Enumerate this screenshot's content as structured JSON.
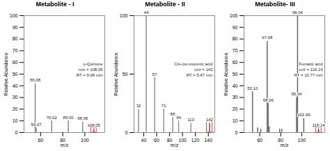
{
  "chart_data": [
    {
      "type": "bar",
      "title": "Metabolite - I",
      "xlabel": "m/z",
      "ylabel": "Relative Abundance",
      "x": [
        55.08,
        56.07,
        70.02,
        85.0,
        98.06,
        108.05
      ],
      "values": [
        42,
        4,
        10,
        10,
        9,
        3
      ],
      "peak_labels": [
        "55.08",
        "56.07",
        "70.02",
        "85.00",
        "98.06",
        "108.05"
      ],
      "color": "#888888",
      "colors": [
        "#888888",
        "#888888",
        "#888888",
        "#888888",
        "#888888",
        "#cc2222"
      ],
      "annotations": [
        "o-Quinone",
        "m/z = 108.05",
        "RT = 9.06 min"
      ],
      "xlim": [
        45,
        118
      ],
      "ylim": [
        0,
        100
      ],
      "xticks": [
        60,
        80,
        100
      ],
      "yticks": [
        0,
        10,
        20,
        30,
        40,
        50,
        60,
        70,
        80,
        90,
        100
      ]
    },
    {
      "type": "bar",
      "title": "Metabolite - II",
      "xlabel": "m/z",
      "ylabel": "Relative Abundance",
      "x": [
        32,
        44,
        57,
        71,
        85,
        94,
        113,
        142
      ],
      "values": [
        20,
        100,
        47,
        20,
        13,
        10,
        8,
        8
      ],
      "peak_labels": [
        "32",
        "44",
        "57",
        "71",
        "85",
        "94",
        "113",
        "142"
      ],
      "color": "#9090a0",
      "colors": [
        "#9090a0",
        "#9090a0",
        "#9090a0",
        "#9090a0",
        "#9090a0",
        "#9090a0",
        "#9090a0",
        "#cc2222"
      ],
      "annotations": [
        "Cis-cis-muconic acid",
        "m/z = 142",
        "RT = 5.67 min"
      ],
      "xlim": [
        25,
        150
      ],
      "ylim": [
        0,
        100
      ],
      "xticks": [
        40,
        60,
        80,
        100,
        120,
        140
      ],
      "yticks": [
        0,
        50,
        100
      ]
    },
    {
      "type": "bar",
      "title": "Metabolite- III",
      "xlabel": "m/z",
      "ylabel": "Relative Abundance",
      "x": [
        53.1,
        58.0,
        61.0,
        67.08,
        68.06,
        69.0,
        79.0,
        81.0,
        95.04,
        96.04,
        101.99,
        116.14
      ],
      "values": [
        35,
        4,
        3,
        78,
        25,
        5,
        3,
        3,
        30,
        100,
        12,
        3
      ],
      "peak_labels": [
        "53.10",
        null,
        null,
        "67.08",
        "68.06",
        null,
        null,
        null,
        "95.04",
        "96.04",
        "101.99",
        "116.14"
      ],
      "color": "#666666",
      "colors": [
        "#666666",
        "#666666",
        "#666666",
        "#666666",
        "#666666",
        "#666666",
        "#666666",
        "#666666",
        "#666666",
        "#666666",
        "#666666",
        "#cc2222"
      ],
      "annotations": [
        "Fumaric acid",
        "m/z = 116.14",
        "RT = 10.77 min"
      ],
      "xlim": [
        45,
        122
      ],
      "ylim": [
        0,
        100
      ],
      "xticks": [
        60,
        80,
        100
      ],
      "yticks": [
        0,
        10,
        20,
        30,
        40,
        50,
        60,
        70,
        80,
        90,
        100
      ]
    }
  ]
}
